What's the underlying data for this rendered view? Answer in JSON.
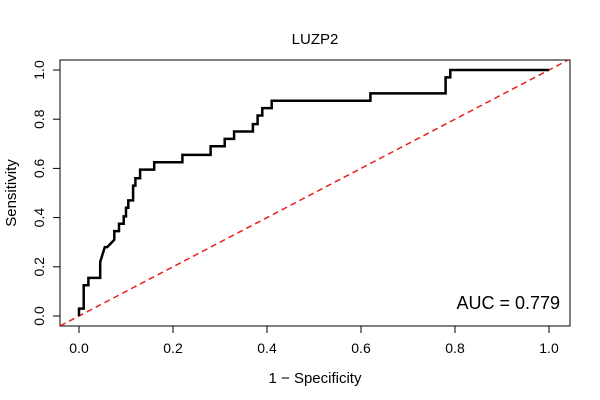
{
  "chart_data": {
    "type": "line",
    "title": "LUZP2",
    "xlabel": "1 − Specificity",
    "ylabel": "Sensitivity",
    "xlim": [
      0,
      1
    ],
    "ylim": [
      0,
      1
    ],
    "x_ticks": [
      "0.0",
      "0.2",
      "0.4",
      "0.6",
      "0.8",
      "1.0"
    ],
    "y_ticks": [
      "0.0",
      "0.2",
      "0.4",
      "0.6",
      "0.8",
      "1.0"
    ],
    "grid": false,
    "annotation": "AUC = 0.779",
    "reference_line": {
      "x": [
        0,
        1
      ],
      "y": [
        0,
        1
      ],
      "color": "#e8201e",
      "style": "dashed"
    },
    "series": [
      {
        "color": "#000000",
        "x": [
          0.0,
          0.0,
          0.01,
          0.01,
          0.02,
          0.02,
          0.045,
          0.045,
          0.05,
          0.055,
          0.06,
          0.075,
          0.075,
          0.085,
          0.085,
          0.095,
          0.095,
          0.1,
          0.1,
          0.105,
          0.105,
          0.115,
          0.115,
          0.12,
          0.12,
          0.13,
          0.13,
          0.16,
          0.16,
          0.22,
          0.22,
          0.28,
          0.28,
          0.31,
          0.31,
          0.33,
          0.33,
          0.37,
          0.37,
          0.38,
          0.38,
          0.39,
          0.39,
          0.41,
          0.41,
          0.62,
          0.62,
          0.78,
          0.78,
          0.79,
          0.79,
          1.0
        ],
        "y": [
          0.0,
          0.03,
          0.03,
          0.125,
          0.125,
          0.155,
          0.155,
          0.22,
          0.25,
          0.28,
          0.28,
          0.31,
          0.345,
          0.345,
          0.375,
          0.375,
          0.405,
          0.405,
          0.44,
          0.44,
          0.47,
          0.47,
          0.53,
          0.53,
          0.56,
          0.56,
          0.595,
          0.595,
          0.625,
          0.625,
          0.655,
          0.655,
          0.69,
          0.69,
          0.72,
          0.72,
          0.75,
          0.75,
          0.78,
          0.78,
          0.815,
          0.815,
          0.845,
          0.845,
          0.875,
          0.875,
          0.905,
          0.905,
          0.97,
          0.97,
          1.0,
          1.0
        ]
      }
    ]
  },
  "colors": {
    "roc_line": "#000000",
    "reference_line": "#e8201e",
    "frame": "#000000"
  }
}
